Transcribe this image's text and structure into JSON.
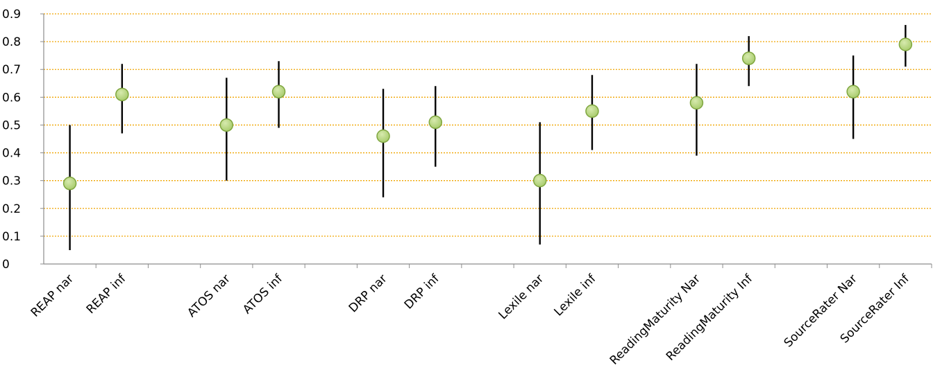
{
  "chart_data": {
    "type": "scatter",
    "ylim": [
      0,
      0.9
    ],
    "y_ticks": [
      0,
      0.1,
      0.2,
      0.3,
      0.4,
      0.5,
      0.6,
      0.7,
      0.8,
      0.9
    ],
    "y_tick_labels": [
      "0",
      "0.1",
      "0.2",
      "0.3",
      "0.4",
      "0.5",
      "0.6",
      "0.7",
      "0.8",
      "0.9"
    ],
    "grid": "horizontal dotted",
    "legend": "none",
    "points": [
      {
        "label": "REAP nar",
        "value": 0.29,
        "low": 0.05,
        "high": 0.5
      },
      {
        "label": "REAP inf",
        "value": 0.61,
        "low": 0.47,
        "high": 0.72
      },
      {
        "label": "",
        "value": null,
        "low": null,
        "high": null
      },
      {
        "label": "ATOS nar",
        "value": 0.5,
        "low": 0.3,
        "high": 0.67
      },
      {
        "label": "ATOS inf",
        "value": 0.62,
        "low": 0.49,
        "high": 0.73
      },
      {
        "label": "",
        "value": null,
        "low": null,
        "high": null
      },
      {
        "label": "DRP nar",
        "value": 0.46,
        "low": 0.24,
        "high": 0.63
      },
      {
        "label": "DRP inf",
        "value": 0.51,
        "low": 0.35,
        "high": 0.64
      },
      {
        "label": "",
        "value": null,
        "low": null,
        "high": null
      },
      {
        "label": "Lexile nar",
        "value": 0.3,
        "low": 0.07,
        "high": 0.51
      },
      {
        "label": "Lexile inf",
        "value": 0.55,
        "low": 0.41,
        "high": 0.68
      },
      {
        "label": "",
        "value": null,
        "low": null,
        "high": null
      },
      {
        "label": "ReadingMaturity Nar",
        "value": 0.58,
        "low": 0.39,
        "high": 0.72
      },
      {
        "label": "ReadingMaturity Inf",
        "value": 0.74,
        "low": 0.64,
        "high": 0.82
      },
      {
        "label": "",
        "value": null,
        "low": null,
        "high": null
      },
      {
        "label": "SourceRater Nar",
        "value": 0.62,
        "low": 0.45,
        "high": 0.75
      },
      {
        "label": "SourceRater Inf",
        "value": 0.79,
        "low": 0.71,
        "high": 0.86
      }
    ],
    "colors": {
      "marker_fill": "#a9cc6e",
      "marker_stroke": "#7fa63f",
      "marker_highlight": "#d7eaae",
      "error_bar": "#000000",
      "grid": "#f0a500",
      "axis": "#8c8c8c"
    }
  }
}
